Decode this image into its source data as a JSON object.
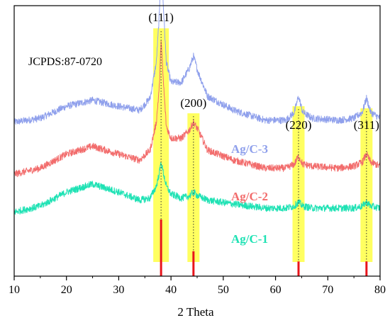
{
  "chart_data": {
    "type": "line",
    "title": "",
    "xlabel": "2 Theta",
    "ylabel": "",
    "xlim": [
      10,
      80
    ],
    "xticks": [
      10,
      20,
      30,
      40,
      50,
      60,
      70,
      80
    ],
    "xtick_labels": [
      "10",
      "20",
      "30",
      "40",
      "50",
      "60",
      "70",
      "80"
    ],
    "yticks_visible": false,
    "grid": false,
    "reference_label": "JCPDS:87-0720",
    "reference_color": "#e8141b",
    "highlight_color": "#ffff33",
    "peaks": [
      {
        "label": "(111)",
        "x": 38.1,
        "ref_intensity": 1.0
      },
      {
        "label": "(200)",
        "x": 44.3,
        "ref_intensity": 0.44
      },
      {
        "label": "(220)",
        "x": 64.4,
        "ref_intensity": 0.26
      },
      {
        "label": "(311)",
        "x": 77.4,
        "ref_intensity": 0.26
      }
    ],
    "series": [
      {
        "name": "Ag/C-3",
        "color": "#8fa0ec",
        "baseline": 0.7,
        "profile": [
          [
            10,
            0.0
          ],
          [
            15,
            0.02
          ],
          [
            20,
            0.08
          ],
          [
            25,
            0.11
          ],
          [
            30,
            0.08
          ],
          [
            34,
            0.06
          ],
          [
            36,
            0.12
          ],
          [
            37.2,
            0.3
          ],
          [
            37.8,
            0.55
          ],
          [
            38.1,
            0.88
          ],
          [
            38.5,
            0.6
          ],
          [
            39.1,
            0.3
          ],
          [
            40,
            0.2
          ],
          [
            42,
            0.2
          ],
          [
            43.5,
            0.27
          ],
          [
            44.3,
            0.33
          ],
          [
            45.2,
            0.25
          ],
          [
            47,
            0.13
          ],
          [
            52,
            0.06
          ],
          [
            58,
            0.01
          ],
          [
            62,
            0.01
          ],
          [
            63.6,
            0.05
          ],
          [
            64.4,
            0.13
          ],
          [
            65.2,
            0.05
          ],
          [
            67,
            0.02
          ],
          [
            72,
            0.01
          ],
          [
            75,
            0.02
          ],
          [
            76.6,
            0.05
          ],
          [
            77.4,
            0.12
          ],
          [
            78.2,
            0.05
          ],
          [
            80,
            0.02
          ]
        ]
      },
      {
        "name": "Ag/C-2",
        "color": "#f26c6c",
        "baseline": 0.44,
        "profile": [
          [
            10,
            0.0
          ],
          [
            15,
            0.03
          ],
          [
            20,
            0.1
          ],
          [
            25,
            0.14
          ],
          [
            30,
            0.1
          ],
          [
            34,
            0.07
          ],
          [
            36,
            0.12
          ],
          [
            37.2,
            0.26
          ],
          [
            37.8,
            0.45
          ],
          [
            38.1,
            0.68
          ],
          [
            38.5,
            0.48
          ],
          [
            39.1,
            0.24
          ],
          [
            40,
            0.18
          ],
          [
            42,
            0.18
          ],
          [
            43.5,
            0.22
          ],
          [
            44.3,
            0.26
          ],
          [
            45.2,
            0.22
          ],
          [
            47,
            0.12
          ],
          [
            52,
            0.07
          ],
          [
            58,
            0.03
          ],
          [
            62,
            0.03
          ],
          [
            63.6,
            0.05
          ],
          [
            64.4,
            0.09
          ],
          [
            65.2,
            0.05
          ],
          [
            67,
            0.04
          ],
          [
            72,
            0.03
          ],
          [
            75,
            0.04
          ],
          [
            76.6,
            0.06
          ],
          [
            77.4,
            0.1
          ],
          [
            78.2,
            0.06
          ],
          [
            80,
            0.04
          ]
        ]
      },
      {
        "name": "Ag/C-1",
        "color": "#1ee2b4",
        "baseline": 0.25,
        "profile": [
          [
            10,
            0.0
          ],
          [
            15,
            0.03
          ],
          [
            20,
            0.1
          ],
          [
            25,
            0.14
          ],
          [
            30,
            0.1
          ],
          [
            34,
            0.06
          ],
          [
            36,
            0.07
          ],
          [
            37.2,
            0.13
          ],
          [
            37.8,
            0.2
          ],
          [
            38.1,
            0.25
          ],
          [
            38.5,
            0.2
          ],
          [
            39.1,
            0.13
          ],
          [
            40,
            0.09
          ],
          [
            42,
            0.07
          ],
          [
            43.5,
            0.08
          ],
          [
            44.3,
            0.1
          ],
          [
            45.2,
            0.08
          ],
          [
            47,
            0.06
          ],
          [
            52,
            0.04
          ],
          [
            58,
            0.02
          ],
          [
            62,
            0.02
          ],
          [
            63.6,
            0.03
          ],
          [
            64.4,
            0.05
          ],
          [
            65.2,
            0.03
          ],
          [
            67,
            0.02
          ],
          [
            72,
            0.02
          ],
          [
            75,
            0.02
          ],
          [
            76.6,
            0.03
          ],
          [
            77.4,
            0.05
          ],
          [
            78.2,
            0.03
          ],
          [
            80,
            0.02
          ]
        ]
      }
    ]
  }
}
